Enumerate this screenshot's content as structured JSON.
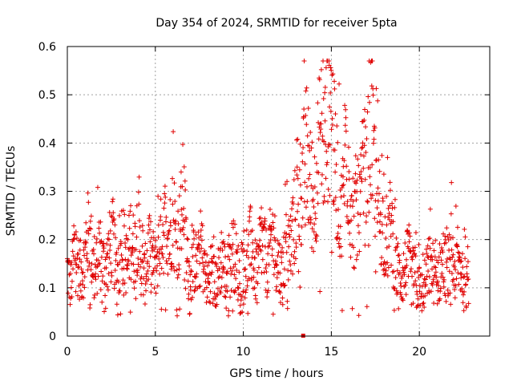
{
  "chart_data": {
    "type": "scatter",
    "title": "Day 354 of 2024, SRMTID for receiver 5pta",
    "xlabel": "GPS time / hours",
    "ylabel": "SRMTID / TECUs",
    "xlim": [
      0,
      24
    ],
    "ylim": [
      0,
      0.6
    ],
    "xticks": [
      0,
      5,
      10,
      15,
      20
    ],
    "yticks": [
      0,
      0.1,
      0.2,
      0.3,
      0.4,
      0.5,
      0.6
    ],
    "xtick_labels": [
      "0",
      "5",
      "10",
      "15",
      "20"
    ],
    "ytick_labels": [
      "0",
      "0.1",
      "0.2",
      "0.3",
      "0.4",
      "0.5",
      "0.6"
    ],
    "grid": true,
    "marker": "+",
    "color": "#e00000",
    "series": [
      {
        "name": "SRMTID",
        "x": [
          0.0,
          0.2,
          0.4,
          0.6,
          0.8,
          1.0,
          1.2,
          1.4,
          1.6,
          1.8,
          2.0,
          2.2,
          2.4,
          2.6,
          2.8,
          3.0,
          3.2,
          3.4,
          3.6,
          3.8,
          4.0,
          4.2,
          4.4,
          4.6,
          4.8,
          5.0,
          5.2,
          5.4,
          5.6,
          5.8,
          6.0,
          6.2,
          6.4,
          6.6,
          6.8,
          7.0,
          7.2,
          7.4,
          7.6,
          7.8,
          8.0,
          8.2,
          8.4,
          8.6,
          8.8,
          9.0,
          9.2,
          9.4,
          9.6,
          9.8,
          10.0,
          10.2,
          10.4,
          10.6,
          10.8,
          11.0,
          11.2,
          11.4,
          11.6,
          11.8,
          12.0,
          12.2,
          12.4,
          12.6,
          12.8,
          13.0,
          13.2,
          13.4,
          13.6,
          13.8,
          14.0,
          14.2,
          14.4,
          14.6,
          14.8,
          15.0,
          15.2,
          15.4,
          15.6,
          15.8,
          16.0,
          16.2,
          16.4,
          16.6,
          16.8,
          17.0,
          17.2,
          17.4,
          17.6,
          17.8,
          18.0,
          18.2,
          18.4,
          18.6,
          18.8,
          19.0,
          19.2,
          19.4,
          19.6,
          19.8,
          20.0,
          20.2,
          20.4,
          20.6,
          20.8,
          21.0,
          21.2,
          21.4,
          21.6,
          21.8,
          22.0,
          22.2,
          22.4,
          22.6,
          22.8
        ],
        "y": [
          0.14,
          0.1,
          0.18,
          0.15,
          0.13,
          0.16,
          0.22,
          0.17,
          0.12,
          0.19,
          0.15,
          0.14,
          0.18,
          0.2,
          0.12,
          0.16,
          0.19,
          0.14,
          0.21,
          0.17,
          0.23,
          0.15,
          0.12,
          0.18,
          0.16,
          0.14,
          0.19,
          0.21,
          0.24,
          0.2,
          0.26,
          0.18,
          0.22,
          0.3,
          0.15,
          0.12,
          0.16,
          0.14,
          0.19,
          0.13,
          0.11,
          0.15,
          0.1,
          0.13,
          0.17,
          0.12,
          0.14,
          0.18,
          0.15,
          0.12,
          0.16,
          0.13,
          0.19,
          0.15,
          0.11,
          0.2,
          0.17,
          0.14,
          0.21,
          0.18,
          0.15,
          0.12,
          0.19,
          0.16,
          0.22,
          0.26,
          0.29,
          0.33,
          0.38,
          0.31,
          0.27,
          0.35,
          0.42,
          0.39,
          0.45,
          0.48,
          0.36,
          0.3,
          0.24,
          0.4,
          0.33,
          0.2,
          0.27,
          0.24,
          0.34,
          0.3,
          0.44,
          0.36,
          0.28,
          0.25,
          0.22,
          0.2,
          0.24,
          0.15,
          0.13,
          0.12,
          0.14,
          0.16,
          0.11,
          0.13,
          0.1,
          0.09,
          0.12,
          0.15,
          0.13,
          0.11,
          0.14,
          0.16,
          0.12,
          0.18,
          0.13,
          0.15,
          0.14,
          0.11,
          0.13
        ],
        "marker_at_zero": 13.4
      }
    ]
  }
}
